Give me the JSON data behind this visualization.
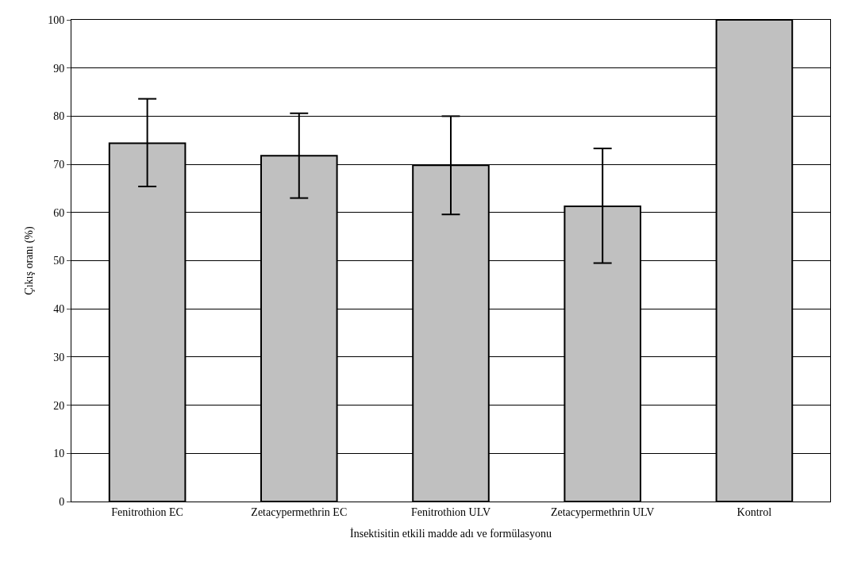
{
  "chart_data": {
    "type": "bar",
    "xlabel": "İnsektisitin etkili madde adı ve formülasyonu",
    "ylabel": "Çıkış oranı (%)",
    "categories": [
      "Fenitrothion EC",
      "Zetacypermethrin EC",
      "Fenitrothion ULV",
      "Zetacypermethrin ULV",
      "Kontrol"
    ],
    "values": [
      74.4,
      71.8,
      69.8,
      61.3,
      100
    ],
    "errors": [
      [
        65.4,
        83.6
      ],
      [
        63.0,
        80.6
      ],
      [
        59.6,
        80.0
      ],
      [
        49.5,
        73.3
      ],
      null
    ],
    "color": "#c0c0c0",
    "ylim": [
      0,
      100
    ],
    "yticks": [
      0,
      10,
      20,
      30,
      40,
      50,
      60,
      70,
      80,
      90,
      100
    ],
    "grid": "y",
    "legend": false
  }
}
